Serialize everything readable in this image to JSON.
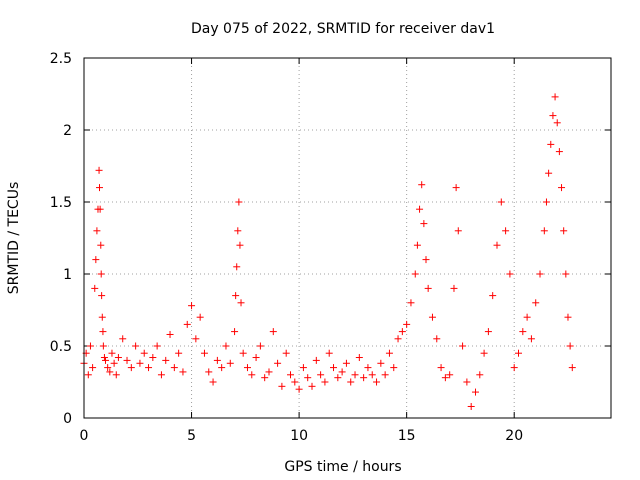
{
  "chart_data": {
    "type": "scatter",
    "title": "Day 075 of 2022, SRMTID for receiver dav1",
    "xlabel": "GPS time / hours",
    "ylabel": "SRMTID / TECUs",
    "xlim": [
      0,
      24.5
    ],
    "ylim": [
      0,
      2.5
    ],
    "xticks": [
      0,
      5,
      10,
      15,
      20
    ],
    "xtick_labels": [
      "0",
      "5",
      "10",
      "15",
      "20"
    ],
    "yticks": [
      0,
      0.5,
      1,
      1.5,
      2,
      2.5
    ],
    "ytick_labels": [
      "0",
      "0.5",
      "1",
      "1.5",
      "2",
      "2.5"
    ],
    "grid": true,
    "marker": "+",
    "color": "#ff0000",
    "series": [
      {
        "name": "dav1",
        "x": [
          0.0,
          0.1,
          0.2,
          0.3,
          0.4,
          0.5,
          0.55,
          0.6,
          0.65,
          0.7,
          0.72,
          0.75,
          0.78,
          0.8,
          0.82,
          0.85,
          0.88,
          0.9,
          0.95,
          1.0,
          1.1,
          1.2,
          1.3,
          1.4,
          1.5,
          1.6,
          1.8,
          2.0,
          2.2,
          2.4,
          2.6,
          2.8,
          3.0,
          3.2,
          3.4,
          3.6,
          3.8,
          4.0,
          4.2,
          4.4,
          4.6,
          4.8,
          5.0,
          5.2,
          5.4,
          5.6,
          5.8,
          6.0,
          6.2,
          6.4,
          6.6,
          6.8,
          7.0,
          7.05,
          7.1,
          7.15,
          7.2,
          7.25,
          7.3,
          7.4,
          7.6,
          7.8,
          8.0,
          8.2,
          8.4,
          8.6,
          8.8,
          9.0,
          9.2,
          9.4,
          9.6,
          9.8,
          10.0,
          10.2,
          10.4,
          10.6,
          10.8,
          11.0,
          11.2,
          11.4,
          11.6,
          11.8,
          12.0,
          12.2,
          12.4,
          12.6,
          12.8,
          13.0,
          13.2,
          13.4,
          13.6,
          13.8,
          14.0,
          14.2,
          14.4,
          14.6,
          14.8,
          15.0,
          15.2,
          15.4,
          15.5,
          15.6,
          15.7,
          15.8,
          15.9,
          16.0,
          16.2,
          16.4,
          16.6,
          16.8,
          17.0,
          17.2,
          17.3,
          17.4,
          17.6,
          17.8,
          18.0,
          18.2,
          18.4,
          18.6,
          18.8,
          19.0,
          19.2,
          19.4,
          19.6,
          19.8,
          20.0,
          20.2,
          20.4,
          20.6,
          20.8,
          21.0,
          21.2,
          21.4,
          21.5,
          21.6,
          21.7,
          21.8,
          21.9,
          22.0,
          22.1,
          22.2,
          22.3,
          22.4,
          22.5,
          22.6,
          22.7
        ],
        "values": [
          0.38,
          0.45,
          0.3,
          0.5,
          0.35,
          0.9,
          1.1,
          1.3,
          1.45,
          1.72,
          1.6,
          1.45,
          1.2,
          1.0,
          0.85,
          0.7,
          0.6,
          0.5,
          0.42,
          0.4,
          0.35,
          0.32,
          0.45,
          0.38,
          0.3,
          0.42,
          0.55,
          0.4,
          0.35,
          0.5,
          0.38,
          0.45,
          0.35,
          0.42,
          0.5,
          0.3,
          0.4,
          0.58,
          0.35,
          0.45,
          0.32,
          0.65,
          0.78,
          0.55,
          0.7,
          0.45,
          0.32,
          0.25,
          0.4,
          0.35,
          0.5,
          0.38,
          0.6,
          0.85,
          1.05,
          1.3,
          1.5,
          1.2,
          0.8,
          0.45,
          0.35,
          0.3,
          0.42,
          0.5,
          0.28,
          0.32,
          0.6,
          0.38,
          0.22,
          0.45,
          0.3,
          0.25,
          0.2,
          0.35,
          0.28,
          0.22,
          0.4,
          0.3,
          0.25,
          0.45,
          0.35,
          0.28,
          0.32,
          0.38,
          0.25,
          0.3,
          0.42,
          0.28,
          0.35,
          0.3,
          0.25,
          0.38,
          0.3,
          0.45,
          0.35,
          0.55,
          0.6,
          0.65,
          0.8,
          1.0,
          1.2,
          1.45,
          1.62,
          1.35,
          1.1,
          0.9,
          0.7,
          0.55,
          0.35,
          0.28,
          0.3,
          0.9,
          1.6,
          1.3,
          0.5,
          0.25,
          0.08,
          0.18,
          0.3,
          0.45,
          0.6,
          0.85,
          1.2,
          1.5,
          1.3,
          1.0,
          0.35,
          0.45,
          0.6,
          0.7,
          0.55,
          0.8,
          1.0,
          1.3,
          1.5,
          1.7,
          1.9,
          2.1,
          2.23,
          2.05,
          1.85,
          1.6,
          1.3,
          1.0,
          0.7,
          0.5,
          0.35
        ]
      }
    ]
  }
}
